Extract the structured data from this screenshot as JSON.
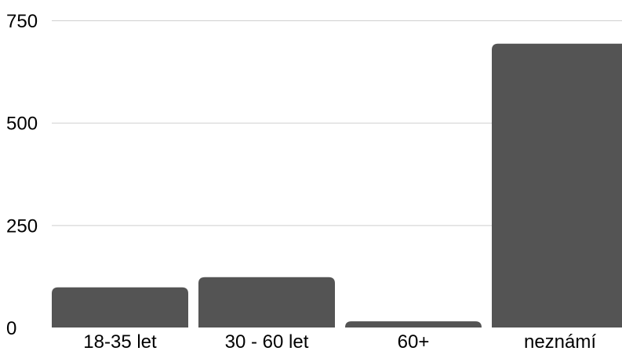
{
  "chart_data": {
    "type": "bar",
    "title": "",
    "xlabel": "",
    "ylabel": "",
    "categories": [
      "18-35 let",
      "30 - 60 let",
      "60+",
      "neznámí"
    ],
    "values": [
      98,
      123,
      15,
      693
    ],
    "ylim": [
      0,
      750
    ],
    "yticks": [
      "0",
      "250",
      "500",
      "750"
    ],
    "grid": true,
    "legend": "none",
    "bar_color": "#545454",
    "grid_color": "#cfcfcf"
  }
}
